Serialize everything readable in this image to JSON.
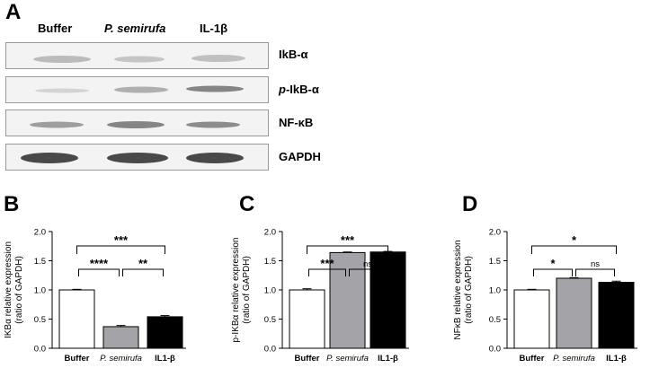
{
  "panels": {
    "a": {
      "letter": "A"
    },
    "b": {
      "letter": "B"
    },
    "c": {
      "letter": "C"
    },
    "d": {
      "letter": "D"
    }
  },
  "blot": {
    "lanes": [
      {
        "label": "Buffer",
        "italic": false
      },
      {
        "label": "P. semirufa",
        "italic": true
      },
      {
        "label": "IL-1β",
        "italic": false
      }
    ],
    "rows": [
      {
        "label": "IkB-α",
        "label_prefix": "",
        "label_suffix": "IkB-α"
      },
      {
        "label": "p-IkB-α",
        "label_prefix": "p",
        "label_suffix": "-IkB-α"
      },
      {
        "label": "NF-κB",
        "label_prefix": "",
        "label_suffix": "NF-κB"
      },
      {
        "label": "GAPDH",
        "label_prefix": "",
        "label_suffix": "GAPDH"
      }
    ]
  },
  "chart_data": [
    {
      "type": "bar",
      "panel": "B",
      "categories": [
        "Buffer",
        "P. semirufa",
        "IL1-β"
      ],
      "values": [
        1.0,
        0.37,
        0.54
      ],
      "errors": [
        0.01,
        0.02,
        0.02
      ],
      "colors": [
        "#ffffff",
        "#a3a3a8",
        "#000000"
      ],
      "ylabel_line1": "IKBα relative expression",
      "ylabel_line2": "(ratio of GAPDH)",
      "ylim": [
        0,
        2.0
      ],
      "yticks": [
        "0.0",
        "0.5",
        "1.0",
        "1.5",
        "2.0"
      ],
      "yticks_values": [
        0,
        0.5,
        1.0,
        1.5,
        2.0
      ],
      "comparisons": [
        {
          "from": 0,
          "to": 1,
          "label": "****",
          "level": 1
        },
        {
          "from": 1,
          "to": 2,
          "label": "**",
          "level": 1
        },
        {
          "from": 0,
          "to": 2,
          "label": "***",
          "level": 2
        }
      ]
    },
    {
      "type": "bar",
      "panel": "C",
      "categories": [
        "Buffer",
        "P. semirufa",
        "IL1-β"
      ],
      "values": [
        1.0,
        1.64,
        1.65
      ],
      "errors": [
        0.02,
        0.01,
        0.01
      ],
      "colors": [
        "#ffffff",
        "#a3a3a8",
        "#000000"
      ],
      "ylabel_line1": "p-IKBα relative expression",
      "ylabel_line2": "(ratio of GAPDH)",
      "ylim": [
        0,
        2.0
      ],
      "yticks": [
        "0.0",
        "0.5",
        "1.0",
        "1.5",
        "2.0"
      ],
      "yticks_values": [
        0,
        0.5,
        1.0,
        1.5,
        2.0
      ],
      "comparisons": [
        {
          "from": 0,
          "to": 1,
          "label": "***",
          "level": 1
        },
        {
          "from": 1,
          "to": 2,
          "label": "ns",
          "level": 1
        },
        {
          "from": 0,
          "to": 2,
          "label": "***",
          "level": 2
        }
      ]
    },
    {
      "type": "bar",
      "panel": "D",
      "categories": [
        "Buffer",
        "P. semirufa",
        "IL1-β"
      ],
      "values": [
        1.0,
        1.2,
        1.13
      ],
      "errors": [
        0.01,
        0.01,
        0.02
      ],
      "colors": [
        "#ffffff",
        "#a3a3a8",
        "#000000"
      ],
      "ylabel_line1": "NFκB relative expression",
      "ylabel_line2": "(ratio of GAPDH)",
      "ylim": [
        0,
        2.0
      ],
      "yticks": [
        "0.0",
        "0.5",
        "1.0",
        "1.5",
        "2.0"
      ],
      "yticks_values": [
        0,
        0.5,
        1.0,
        1.5,
        2.0
      ],
      "comparisons": [
        {
          "from": 0,
          "to": 1,
          "label": "*",
          "level": 1
        },
        {
          "from": 1,
          "to": 2,
          "label": "ns",
          "level": 1
        },
        {
          "from": 0,
          "to": 2,
          "label": "*",
          "level": 2
        }
      ]
    }
  ]
}
